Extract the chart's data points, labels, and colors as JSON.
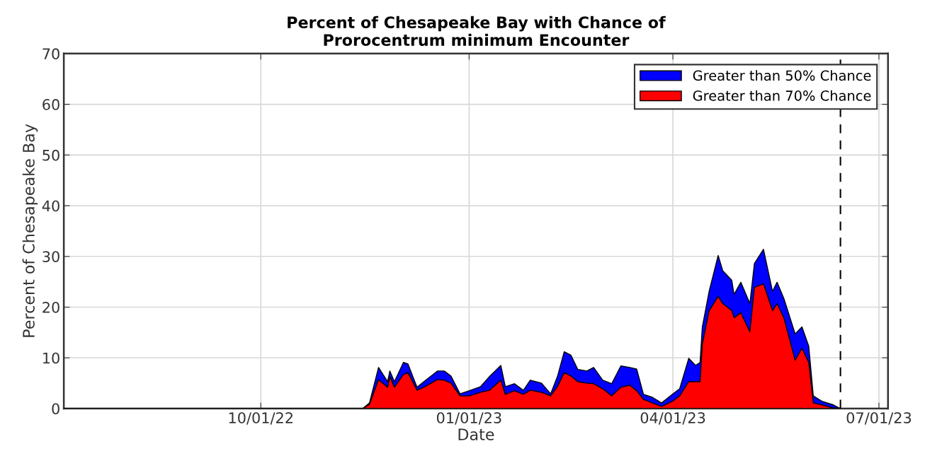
{
  "chart_data": {
    "type": "area",
    "title": "Percent of Chesapeake Bay with Chance of\nProrocentrum minimum Encounter",
    "xlabel": "Date",
    "ylabel": "Percent of Chesapeake Bay",
    "x": [
      "2022-07-06",
      "2022-11-15",
      "2022-11-18",
      "2022-11-22",
      "2022-11-26",
      "2022-11-27",
      "2022-11-29",
      "2022-12-03",
      "2022-12-05",
      "2022-12-09",
      "2022-12-12",
      "2022-12-18",
      "2022-12-21",
      "2022-12-24",
      "2022-12-28",
      "2023-01-01",
      "2023-01-06",
      "2023-01-10",
      "2023-01-15",
      "2023-01-17",
      "2023-01-21",
      "2023-01-25",
      "2023-01-28",
      "2023-02-02",
      "2023-02-06",
      "2023-02-09",
      "2023-02-12",
      "2023-02-15",
      "2023-02-18",
      "2023-02-22",
      "2023-02-25",
      "2023-03-01",
      "2023-03-05",
      "2023-03-09",
      "2023-03-13",
      "2023-03-16",
      "2023-03-19",
      "2023-03-23",
      "2023-03-27",
      "2023-04-01",
      "2023-04-04",
      "2023-04-08",
      "2023-04-11",
      "2023-04-13",
      "2023-04-14",
      "2023-04-17",
      "2023-04-21",
      "2023-04-23",
      "2023-04-27",
      "2023-04-28",
      "2023-05-01",
      "2023-05-05",
      "2023-05-07",
      "2023-05-11",
      "2023-05-15",
      "2023-05-17",
      "2023-05-20",
      "2023-05-25",
      "2023-05-28",
      "2023-05-31",
      "2023-06-02",
      "2023-06-06",
      "2023-06-11",
      "2023-06-14"
    ],
    "series": [
      {
        "name": "Greater than 50% Chance",
        "color": "#0000ff",
        "values": [
          0,
          0,
          1.1,
          8.1,
          5.3,
          7.4,
          5.3,
          9.1,
          8.8,
          4.2,
          5.3,
          7.4,
          7.4,
          6.4,
          2.9,
          3.5,
          4.3,
          6.3,
          8.5,
          4.3,
          4.9,
          3.6,
          5.6,
          5.0,
          2.9,
          6.3,
          11.2,
          10.5,
          7.7,
          7.4,
          8.1,
          5.6,
          4.9,
          8.4,
          8.1,
          7.8,
          2.8,
          2.2,
          1.1,
          2.9,
          3.9,
          9.9,
          8.5,
          9.1,
          16.1,
          23.1,
          30.2,
          27.2,
          25.3,
          22.5,
          24.9,
          20.7,
          28.6,
          31.4,
          23.1,
          24.9,
          21.7,
          14.7,
          16.1,
          12.3,
          2.5,
          1.4,
          0.7,
          0
        ]
      },
      {
        "name": "Greater than 70% Chance",
        "color": "#ff0000",
        "values": [
          0,
          0,
          0.8,
          5.7,
          4.2,
          6.3,
          4.2,
          6.7,
          7.1,
          3.6,
          4.2,
          5.7,
          5.6,
          5.0,
          2.5,
          2.5,
          3.2,
          3.6,
          5.6,
          2.8,
          3.5,
          2.8,
          3.6,
          3.2,
          2.5,
          4.3,
          7.1,
          6.4,
          5.3,
          5.0,
          4.9,
          3.9,
          2.5,
          4.2,
          4.6,
          3.5,
          1.8,
          1.1,
          0.4,
          1.5,
          2.5,
          5.3,
          5.3,
          5.3,
          12.7,
          19.3,
          22.1,
          20.7,
          19.3,
          17.9,
          18.9,
          15.1,
          23.9,
          24.6,
          19.3,
          20.7,
          17.9,
          9.5,
          11.9,
          9.1,
          1.1,
          0.7,
          0.1,
          0
        ]
      }
    ],
    "xlim": [
      "2022-07-06",
      "2023-07-05"
    ],
    "xticks": [
      {
        "value": "2022-10-01",
        "label": "10/01/22"
      },
      {
        "value": "2023-01-01",
        "label": "01/01/23"
      },
      {
        "value": "2023-04-01",
        "label": "04/01/23"
      },
      {
        "value": "2023-07-01",
        "label": "07/01/23"
      }
    ],
    "ylim": [
      0,
      70
    ],
    "yticks": [
      0,
      10,
      20,
      30,
      40,
      50,
      60,
      70
    ],
    "ref_lines": [
      {
        "axis": "x",
        "value": "2023-06-14",
        "color": "#000000",
        "line_style": "dashed"
      }
    ],
    "grid": true,
    "legend": "top right"
  }
}
